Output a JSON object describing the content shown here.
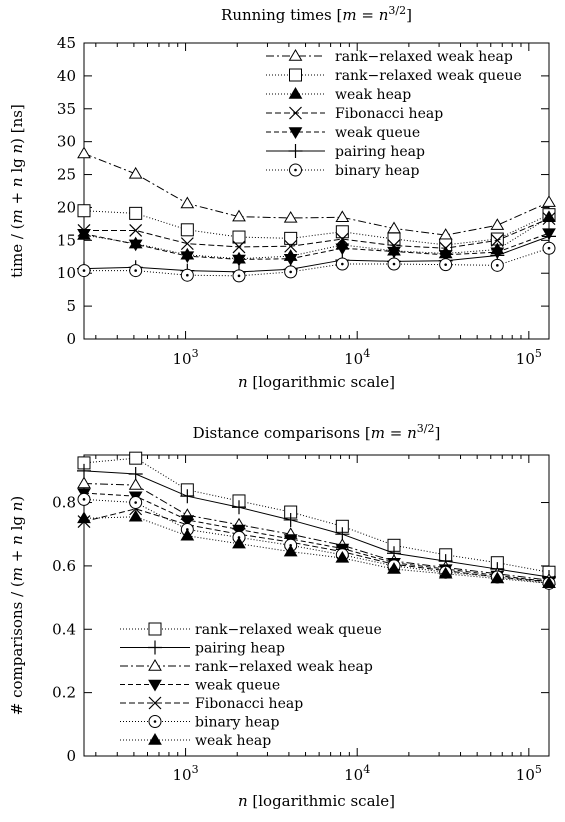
{
  "chart_data": [
    {
      "type": "line",
      "title_html": "Running times [<tspan font-style=\"italic\">m</tspan> = <tspan font-style=\"italic\">n</tspan><tspan dy=\"-6\" font-size=\"11\">3/2</tspan><tspan dy=\"6\">]</tspan>",
      "title": "Running times [m = n^3/2]",
      "xlabel": "n [logarithmic scale]",
      "ylabel": "time / (m + n lg n) [ns]",
      "xscale": "log",
      "xlim": [
        256,
        131072
      ],
      "ylim": [
        0,
        45
      ],
      "yticks": [
        0,
        5,
        10,
        15,
        20,
        25,
        30,
        35,
        40,
        45
      ],
      "xticks": [
        {
          "value": 1000,
          "base": "10",
          "exp": "3"
        },
        {
          "value": 10000,
          "base": "10",
          "exp": "4"
        },
        {
          "value": 100000,
          "base": "10",
          "exp": "5"
        }
      ],
      "legend_position": "top-right",
      "x": [
        256,
        512,
        1024,
        2048,
        4096,
        8192,
        16384,
        32768,
        65536,
        131072
      ],
      "series": [
        {
          "name": "rank−relaxed weak heap",
          "marker": "triangle-open",
          "dash": "8,3,2,3",
          "values": [
            28.2,
            25.1,
            20.6,
            18.6,
            18.4,
            18.5,
            16.8,
            15.8,
            17.3,
            20.8
          ]
        },
        {
          "name": "rank−relaxed weak queue",
          "marker": "square-open",
          "dash": "1,2",
          "values": [
            19.5,
            19.1,
            16.6,
            15.5,
            15.3,
            16.3,
            15.2,
            14.3,
            15.2,
            18.9
          ]
        },
        {
          "name": "weak heap",
          "marker": "triangle-filled",
          "dash": "1,2",
          "values": [
            15.8,
            14.5,
            12.8,
            12.2,
            12.6,
            14.3,
            13.4,
            13.0,
            13.6,
            18.5
          ]
        },
        {
          "name": "Fibonacci heap",
          "marker": "x",
          "dash": "6,3",
          "values": [
            16.5,
            16.5,
            14.5,
            14.0,
            14.1,
            15.2,
            14.2,
            13.8,
            15.0,
            18.3
          ]
        },
        {
          "name": "weak queue",
          "marker": "triangle-down-filled",
          "dash": "5,3",
          "values": [
            16.0,
            14.4,
            12.6,
            12.1,
            12.2,
            13.8,
            13.3,
            12.8,
            13.2,
            16.1
          ]
        },
        {
          "name": "pairing heap",
          "marker": "plus",
          "dash": "",
          "values": [
            10.7,
            10.9,
            10.4,
            10.2,
            10.6,
            12.0,
            11.8,
            11.9,
            12.7,
            15.6
          ]
        },
        {
          "name": "binary heap",
          "marker": "circle-open",
          "dash": "1,2",
          "values": [
            10.4,
            10.4,
            9.7,
            9.6,
            10.2,
            11.4,
            11.4,
            11.3,
            11.2,
            13.8
          ]
        }
      ]
    },
    {
      "type": "line",
      "title_html": "Distance comparisons [<tspan font-style=\"italic\">m</tspan> = <tspan font-style=\"italic\">n</tspan><tspan dy=\"-6\" font-size=\"11\">3/2</tspan><tspan dy=\"6\">]</tspan>",
      "title": "Distance comparisons [m = n^3/2]",
      "xlabel": "n [logarithmic scale]",
      "ylabel": "# comparisons / (m + n lg n)",
      "xscale": "log",
      "xlim": [
        256,
        131072
      ],
      "ylim": [
        0,
        0.95
      ],
      "yticks": [
        0,
        0.2,
        0.4,
        0.6,
        0.8
      ],
      "xticks": [
        {
          "value": 1000,
          "base": "10",
          "exp": "3"
        },
        {
          "value": 10000,
          "base": "10",
          "exp": "4"
        },
        {
          "value": 100000,
          "base": "10",
          "exp": "5"
        }
      ],
      "legend_position": "bottom-left",
      "x": [
        256,
        512,
        1024,
        2048,
        4096,
        8192,
        16384,
        32768,
        65536,
        131072
      ],
      "series": [
        {
          "name": "rank−relaxed weak queue",
          "marker": "square-open",
          "dash": "1,2",
          "values": [
            0.925,
            0.94,
            0.84,
            0.805,
            0.77,
            0.725,
            0.665,
            0.635,
            0.61,
            0.58
          ]
        },
        {
          "name": "pairing heap",
          "marker": "plus",
          "dash": "",
          "values": [
            0.9,
            0.89,
            0.82,
            0.785,
            0.745,
            0.7,
            0.64,
            0.615,
            0.59,
            0.565
          ]
        },
        {
          "name": "rank−relaxed weak heap",
          "marker": "triangle-open",
          "dash": "8,3,2,3",
          "values": [
            0.86,
            0.855,
            0.76,
            0.73,
            0.7,
            0.665,
            0.615,
            0.595,
            0.575,
            0.555
          ]
        },
        {
          "name": "weak queue",
          "marker": "triangle-down-filled",
          "dash": "5,3",
          "values": [
            0.83,
            0.82,
            0.745,
            0.715,
            0.685,
            0.655,
            0.61,
            0.59,
            0.57,
            0.55
          ]
        },
        {
          "name": "Fibonacci heap",
          "marker": "x",
          "dash": "6,3",
          "values": [
            0.74,
            0.78,
            0.73,
            0.7,
            0.675,
            0.645,
            0.605,
            0.585,
            0.565,
            0.55
          ]
        },
        {
          "name": "binary heap",
          "marker": "circle-open",
          "dash": "1,2",
          "values": [
            0.81,
            0.8,
            0.715,
            0.69,
            0.665,
            0.635,
            0.6,
            0.58,
            0.565,
            0.545
          ]
        },
        {
          "name": "weak heap",
          "marker": "triangle-filled",
          "dash": "1,2",
          "values": [
            0.75,
            0.755,
            0.695,
            0.67,
            0.645,
            0.625,
            0.59,
            0.575,
            0.56,
            0.545
          ]
        }
      ]
    }
  ]
}
